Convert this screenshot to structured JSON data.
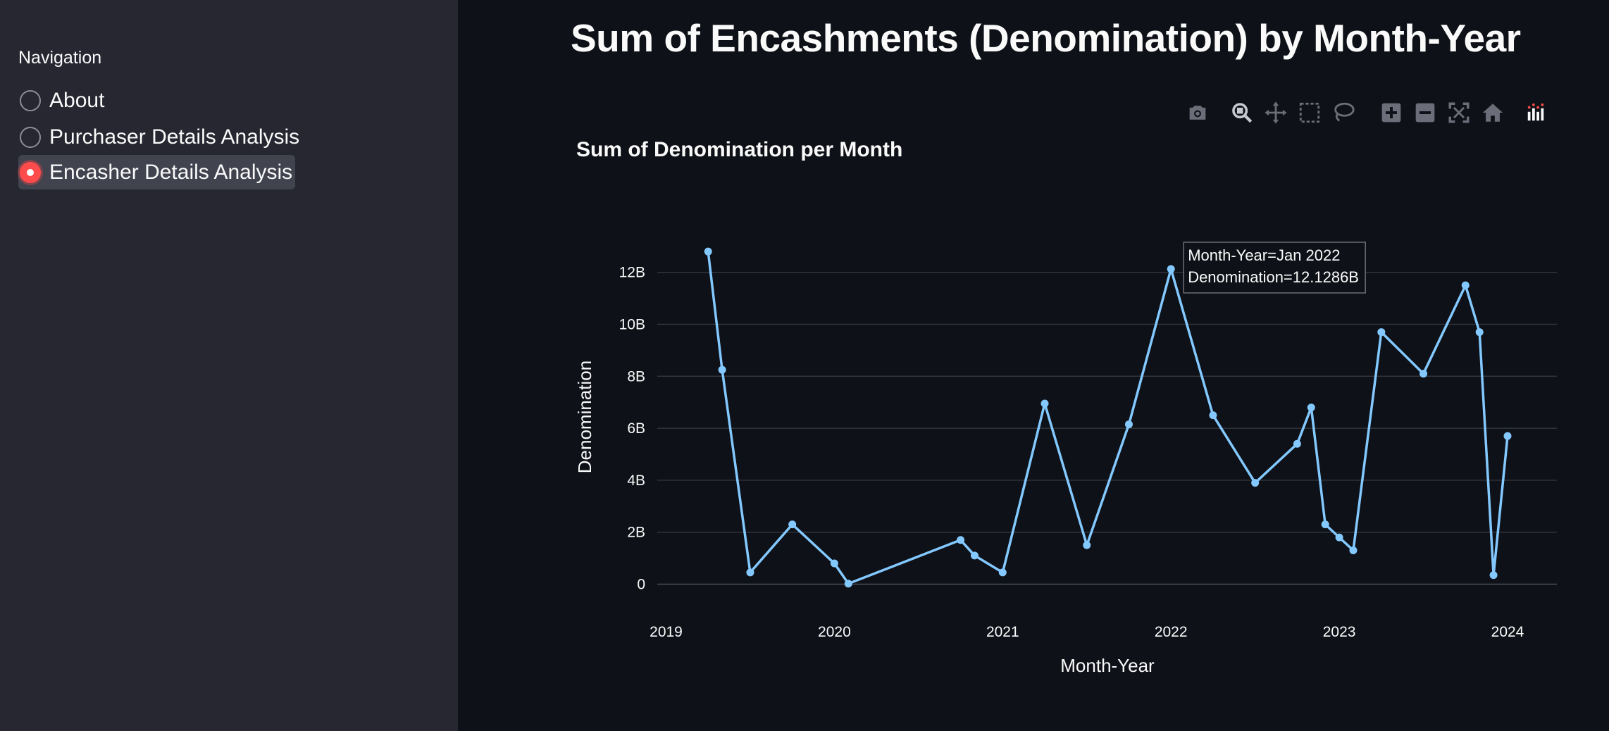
{
  "sidebar": {
    "heading": "Navigation",
    "items": [
      {
        "label": "About",
        "selected": false
      },
      {
        "label": "Purchaser Details Analysis",
        "selected": false
      },
      {
        "label": "Encasher Details Analysis",
        "selected": true
      }
    ],
    "accent_color": "#ff4b4b"
  },
  "page": {
    "title": "Sum of Encashments (Denomination) by Month-Year"
  },
  "modebar": {
    "icons": [
      "camera-icon",
      "zoom-icon",
      "pan-icon",
      "box-select-icon",
      "lasso-select-icon",
      "zoom-in-icon",
      "zoom-out-icon",
      "autoscale-icon",
      "reset-axes-icon",
      "plotly-logo-icon"
    ]
  },
  "chart_data": {
    "type": "line",
    "title": "Sum of Denomination per Month",
    "xlabel": "Month-Year",
    "ylabel": "Denomination",
    "line_color": "#83c9ff",
    "grid": true,
    "x_ticks": [
      "2019",
      "2020",
      "2021",
      "2022",
      "2023",
      "2024"
    ],
    "y_ticks": [
      "0",
      "2B",
      "4B",
      "6B",
      "8B",
      "10B",
      "12B"
    ],
    "ylim": [
      -0.5,
      13.5
    ],
    "xlim": [
      "2019-01-01",
      "2024-04-01"
    ],
    "x": [
      "2019-04",
      "2019-05",
      "2019-07",
      "2019-10",
      "2020-01",
      "2020-02",
      "2020-10",
      "2020-11",
      "2021-01",
      "2021-04",
      "2021-07",
      "2021-10",
      "2022-01",
      "2022-04",
      "2022-07",
      "2022-10",
      "2022-11",
      "2022-12",
      "2023-01",
      "2023-02",
      "2023-04",
      "2023-07",
      "2023-10",
      "2023-11",
      "2023-12",
      "2024-01"
    ],
    "values": [
      12.8,
      8.25,
      0.45,
      2.3,
      0.8,
      0.02,
      1.7,
      1.1,
      0.45,
      6.95,
      1.5,
      6.15,
      12.1286,
      6.5,
      3.9,
      5.4,
      6.8,
      2.3,
      1.8,
      1.3,
      9.7,
      8.1,
      11.5,
      9.7,
      0.35,
      5.7
    ],
    "value_unit": "B",
    "hover": {
      "point_index": 12,
      "line1": "Month-Year=Jan 2022",
      "line2": "Denomination=12.1286B"
    }
  }
}
